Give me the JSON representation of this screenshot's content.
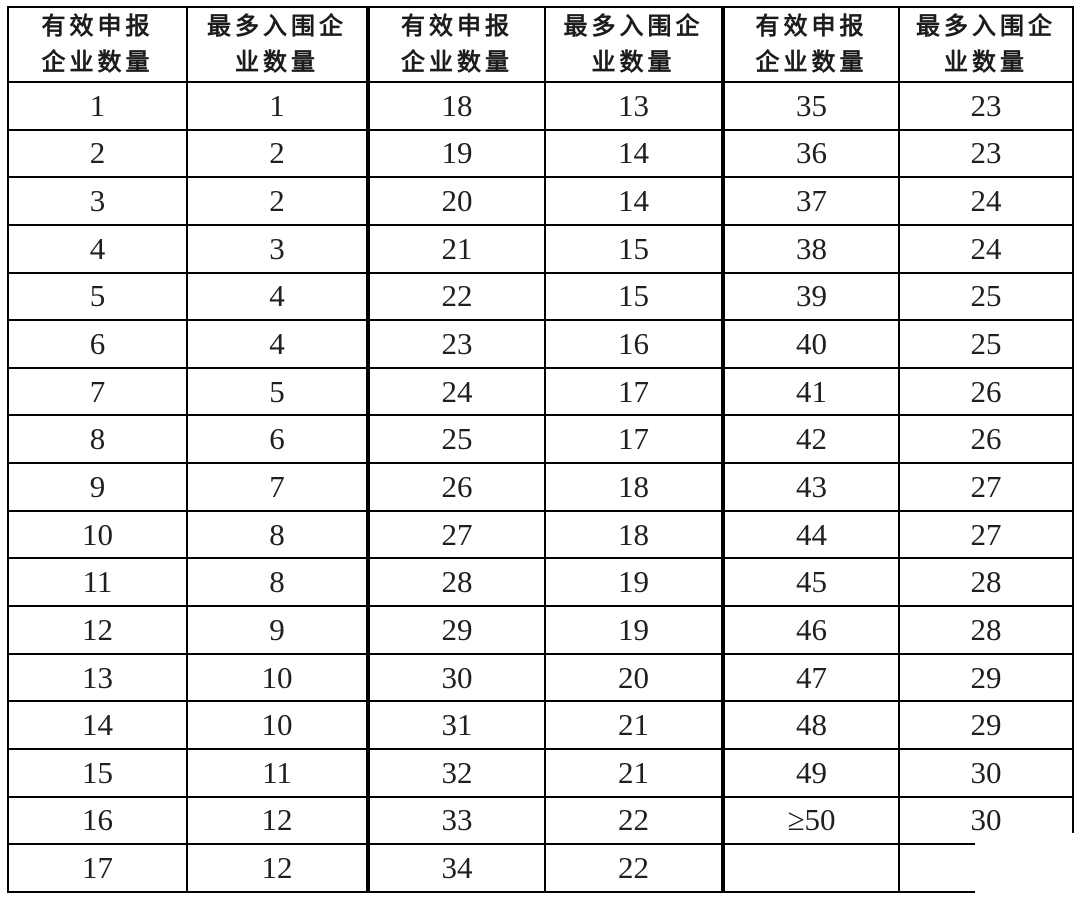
{
  "table": {
    "headers": [
      {
        "line1": "有效申报",
        "line2": "企业数量"
      },
      {
        "line1": "最多入围企",
        "line2": "业数量"
      },
      {
        "line1": "有效申报",
        "line2": "企业数量"
      },
      {
        "line1": "最多入围企",
        "line2": "业数量"
      },
      {
        "line1": "有效申报",
        "line2": "企业数量"
      },
      {
        "line1": "最多入围企",
        "line2": "业数量"
      }
    ],
    "rows": [
      [
        "1",
        "1",
        "18",
        "13",
        "35",
        "23"
      ],
      [
        "2",
        "2",
        "19",
        "14",
        "36",
        "23"
      ],
      [
        "3",
        "2",
        "20",
        "14",
        "37",
        "24"
      ],
      [
        "4",
        "3",
        "21",
        "15",
        "38",
        "24"
      ],
      [
        "5",
        "4",
        "22",
        "15",
        "39",
        "25"
      ],
      [
        "6",
        "4",
        "23",
        "16",
        "40",
        "25"
      ],
      [
        "7",
        "5",
        "24",
        "17",
        "41",
        "26"
      ],
      [
        "8",
        "6",
        "25",
        "17",
        "42",
        "26"
      ],
      [
        "9",
        "7",
        "26",
        "18",
        "43",
        "27"
      ],
      [
        "10",
        "8",
        "27",
        "18",
        "44",
        "27"
      ],
      [
        "11",
        "8",
        "28",
        "19",
        "45",
        "28"
      ],
      [
        "12",
        "9",
        "29",
        "19",
        "46",
        "28"
      ],
      [
        "13",
        "10",
        "30",
        "20",
        "47",
        "29"
      ],
      [
        "14",
        "10",
        "31",
        "21",
        "48",
        "29"
      ],
      [
        "15",
        "11",
        "32",
        "21",
        "49",
        "30"
      ],
      [
        "16",
        "12",
        "33",
        "22",
        "≥50",
        "30"
      ],
      [
        "17",
        "12",
        "34",
        "22",
        "",
        ""
      ]
    ]
  },
  "colors": {
    "border": "#000000",
    "text": "#1f1f1f",
    "background": "#ffffff"
  }
}
